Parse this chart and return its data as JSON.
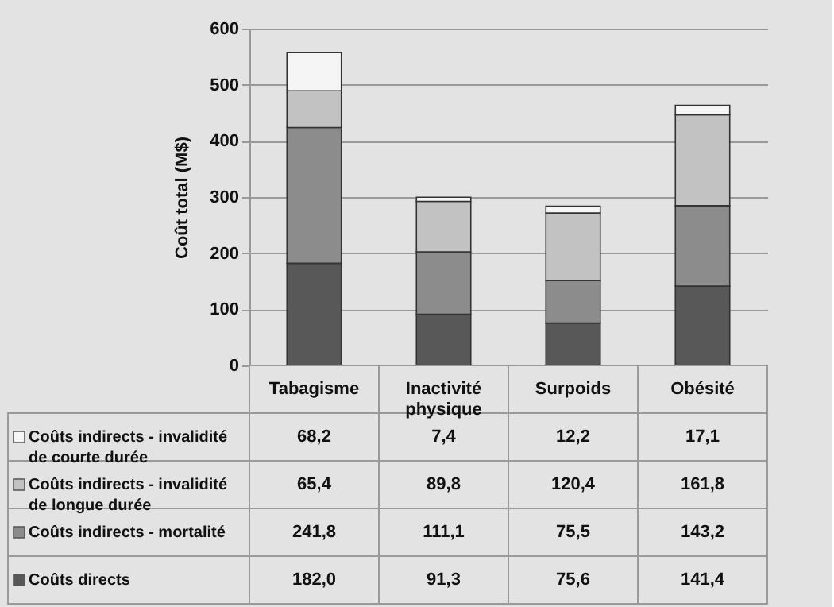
{
  "chart_data": {
    "type": "bar",
    "stacked": true,
    "ylabel": "Coût total (M$)",
    "categories": [
      "Tabagisme",
      "Inactivité physique",
      "Surpoids",
      "Obésité"
    ],
    "series": [
      {
        "name": "Coûts directs",
        "color": "#585858",
        "values": [
          182.0,
          91.3,
          75.6,
          141.4
        ],
        "value_labels": [
          "182,0",
          "91,3",
          "75,6",
          "141,4"
        ]
      },
      {
        "name": "Coûts indirects - mortalité",
        "color": "#8c8c8c",
        "values": [
          241.8,
          111.1,
          75.5,
          143.2
        ],
        "value_labels": [
          "241,8",
          "111,1",
          "75,5",
          "143,2"
        ]
      },
      {
        "name": "Coûts indirects - invalidité de longue durée",
        "color": "#c2c2c2",
        "values": [
          65.4,
          89.8,
          120.4,
          161.8
        ],
        "value_labels": [
          "65,4",
          "89,8",
          "120,4",
          "161,8"
        ]
      },
      {
        "name": "Coûts indirects - invalidité de courte durée",
        "color": "#f5f5f5",
        "values": [
          68.2,
          7.4,
          12.2,
          17.1
        ],
        "value_labels": [
          "68,2",
          "7,4",
          "12,2",
          "17,1"
        ]
      }
    ],
    "ylim": [
      0,
      600
    ],
    "yticks": [
      0,
      100,
      200,
      300,
      400,
      500,
      600
    ],
    "grid": "y",
    "legend": "bottom left"
  }
}
